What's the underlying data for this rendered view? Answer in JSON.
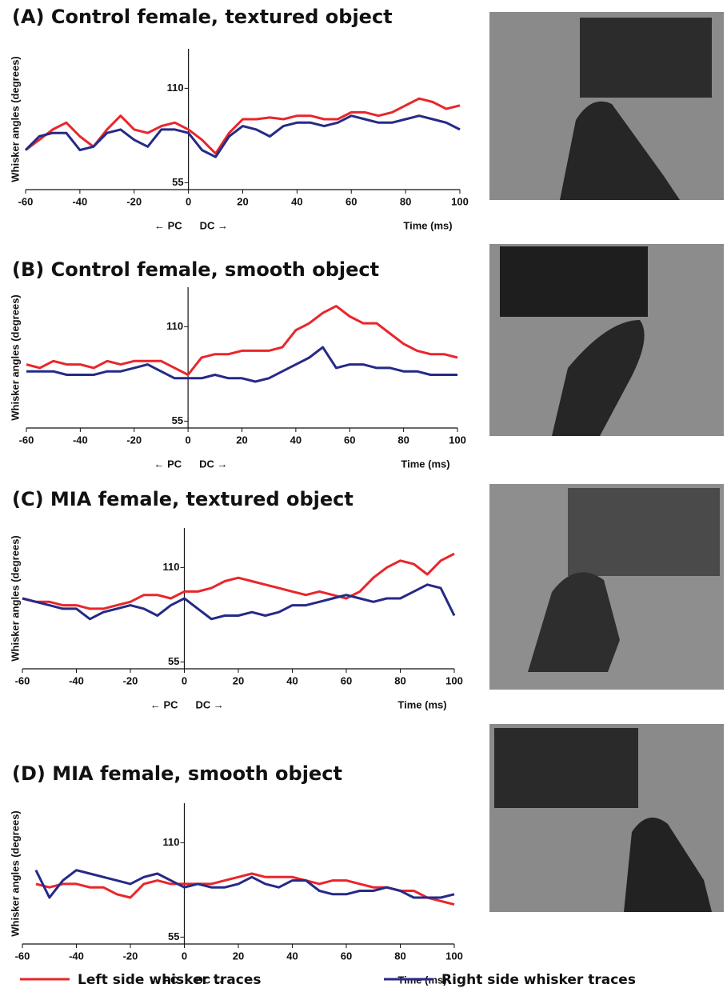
{
  "chart_data": [
    {
      "type": "line",
      "title": "(A) Control female, textured object",
      "y_label": "Whisker angles (degrees)",
      "x_label": "Time (ms)",
      "annotations": [
        "← PC",
        "DC →"
      ],
      "xlim": [
        -60,
        100
      ],
      "xticks": [
        -60,
        -40,
        -20,
        0,
        20,
        40,
        60,
        80,
        100
      ],
      "ylim": [
        51,
        133
      ],
      "yticks": [
        55,
        110
      ],
      "x": [
        -60,
        -55,
        -50,
        -45,
        -40,
        -35,
        -30,
        -25,
        -20,
        -15,
        -10,
        -5,
        0,
        5,
        10,
        15,
        20,
        25,
        30,
        35,
        40,
        45,
        50,
        55,
        60,
        65,
        70,
        75,
        80,
        85,
        90,
        95,
        100
      ],
      "series": [
        {
          "color": "#e8262b",
          "values": [
            74,
            80,
            86,
            90,
            82,
            76,
            86,
            94,
            86,
            84,
            88,
            90,
            86,
            80,
            72,
            84,
            92,
            92,
            93,
            92,
            94,
            94,
            92,
            92,
            96,
            96,
            94,
            96,
            100,
            104,
            102,
            98,
            100
          ]
        },
        {
          "color": "#252a86",
          "values": [
            74,
            82,
            84,
            84,
            74,
            76,
            84,
            86,
            80,
            76,
            86,
            86,
            84,
            74,
            70,
            82,
            88,
            86,
            82,
            88,
            90,
            90,
            88,
            90,
            94,
            92,
            90,
            90,
            92,
            94,
            92,
            90,
            86
          ]
        }
      ]
    },
    {
      "type": "line",
      "title": "(B) Control female, smooth object",
      "y_label": "Whisker angles (degrees)",
      "x_label": "Time (ms)",
      "annotations": [
        "← PC",
        "DC →"
      ],
      "xlim": [
        -60,
        100
      ],
      "xticks": [
        -60,
        -40,
        -20,
        0,
        20,
        40,
        60,
        80,
        100
      ],
      "ylim": [
        51,
        133
      ],
      "yticks": [
        55,
        110
      ],
      "x": [
        -60,
        -55,
        -50,
        -45,
        -40,
        -35,
        -30,
        -25,
        -20,
        -15,
        -10,
        -5,
        0,
        5,
        10,
        15,
        20,
        25,
        30,
        35,
        40,
        45,
        50,
        55,
        60,
        65,
        70,
        75,
        80,
        85,
        90,
        95,
        100
      ],
      "series": [
        {
          "color": "#e8262b",
          "values": [
            88,
            86,
            90,
            88,
            88,
            86,
            90,
            88,
            90,
            90,
            90,
            86,
            82,
            92,
            94,
            94,
            96,
            96,
            96,
            98,
            108,
            112,
            118,
            122,
            116,
            112,
            112,
            106,
            100,
            96,
            94,
            94,
            92
          ]
        },
        {
          "color": "#252a86",
          "values": [
            84,
            84,
            84,
            82,
            82,
            82,
            84,
            84,
            86,
            88,
            84,
            80,
            80,
            80,
            82,
            80,
            80,
            78,
            80,
            84,
            88,
            92,
            98,
            86,
            88,
            88,
            86,
            86,
            84,
            84,
            82,
            82,
            82
          ]
        }
      ]
    },
    {
      "type": "line",
      "title": "(C) MIA female, textured object",
      "y_label": "Whisker angles (degrees)",
      "x_label": "Time (ms)",
      "annotations": [
        "← PC",
        "DC →"
      ],
      "xlim": [
        -60,
        100
      ],
      "xticks": [
        -60,
        -40,
        -20,
        0,
        20,
        40,
        60,
        80,
        100
      ],
      "ylim": [
        51,
        133
      ],
      "yticks": [
        55,
        110
      ],
      "x": [
        -60,
        -55,
        -50,
        -45,
        -40,
        -35,
        -30,
        -25,
        -20,
        -15,
        -10,
        -5,
        0,
        5,
        10,
        15,
        20,
        25,
        30,
        35,
        40,
        45,
        50,
        55,
        60,
        65,
        70,
        75,
        80,
        85,
        90,
        95,
        100
      ],
      "series": [
        {
          "color": "#e8262b",
          "values": [
            92,
            90,
            90,
            88,
            88,
            86,
            86,
            88,
            90,
            94,
            94,
            92,
            96,
            96,
            98,
            102,
            104,
            102,
            100,
            98,
            96,
            94,
            96,
            94,
            92,
            96,
            104,
            110,
            114,
            112,
            106,
            114,
            118
          ]
        },
        {
          "color": "#252a86",
          "values": [
            92,
            90,
            88,
            86,
            86,
            80,
            84,
            86,
            88,
            86,
            82,
            88,
            92,
            86,
            80,
            82,
            82,
            84,
            82,
            84,
            88,
            88,
            90,
            92,
            94,
            92,
            90,
            92,
            92,
            96,
            100,
            98,
            82
          ]
        }
      ]
    },
    {
      "type": "line",
      "title": "(D) MIA female, smooth object",
      "y_label": "Whisker angles (degrees)",
      "x_label": "Time (ms)",
      "annotations": [
        "← PC",
        "DC →"
      ],
      "xlim": [
        -60,
        100
      ],
      "xticks": [
        -60,
        -40,
        -20,
        0,
        20,
        40,
        60,
        80,
        100
      ],
      "ylim": [
        51,
        133
      ],
      "yticks": [
        55,
        110
      ],
      "x": [
        -55,
        -50,
        -45,
        -40,
        -35,
        -30,
        -25,
        -20,
        -15,
        -10,
        -5,
        0,
        5,
        10,
        15,
        20,
        25,
        30,
        35,
        40,
        45,
        50,
        55,
        60,
        65,
        70,
        75,
        80,
        85,
        90,
        95,
        100
      ],
      "series": [
        {
          "color": "#e8262b",
          "values": [
            86,
            84,
            86,
            86,
            84,
            84,
            80,
            78,
            86,
            88,
            86,
            86,
            86,
            86,
            88,
            90,
            92,
            90,
            90,
            90,
            88,
            86,
            88,
            88,
            86,
            84,
            84,
            82,
            82,
            78,
            76,
            74
          ]
        },
        {
          "color": "#252a86",
          "values": [
            94,
            78,
            88,
            94,
            92,
            90,
            88,
            86,
            90,
            92,
            88,
            84,
            86,
            84,
            84,
            86,
            90,
            86,
            84,
            88,
            88,
            82,
            80,
            80,
            82,
            82,
            84,
            82,
            78,
            78,
            78,
            80
          ]
        }
      ]
    }
  ],
  "legend": [
    {
      "name": "Left side whisker traces",
      "color": "#e8262b"
    },
    {
      "name": "Right side whisker traces",
      "color": "#252a86"
    }
  ]
}
